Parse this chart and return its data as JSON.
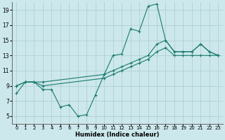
{
  "xlabel": "Humidex (Indice chaleur)",
  "bg_color": "#cce8ec",
  "grid_color": "#aacccc",
  "line_color": "#1a7a6e",
  "xlim": [
    -0.5,
    23.5
  ],
  "ylim": [
    4.0,
    20.0
  ],
  "xticks": [
    0,
    1,
    2,
    3,
    4,
    5,
    6,
    7,
    8,
    9,
    10,
    11,
    12,
    13,
    14,
    15,
    16,
    17,
    18,
    19,
    20,
    21,
    22,
    23
  ],
  "yticks": [
    5,
    7,
    9,
    11,
    13,
    15,
    17,
    19
  ],
  "series": {
    "jagged": {
      "x": [
        0,
        1,
        2,
        3,
        4,
        5,
        6,
        7,
        8,
        9,
        10,
        11,
        12,
        13,
        14,
        15,
        16,
        17,
        18,
        19,
        20,
        21,
        22,
        23
      ],
      "y": [
        8,
        9.5,
        9.5,
        8.5,
        8.5,
        6.2,
        6.5,
        5.0,
        5.2,
        7.8,
        10.5,
        13.0,
        13.2,
        16.5,
        16.2,
        19.5,
        19.8,
        15.0,
        13.5,
        13.5,
        13.5,
        14.5,
        13.5,
        13.0
      ]
    },
    "upper_straight": {
      "x": [
        0,
        1,
        2,
        3,
        10,
        11,
        12,
        13,
        14,
        15,
        16,
        17,
        18,
        19,
        20,
        21,
        22,
        23
      ],
      "y": [
        9,
        9.5,
        9.5,
        9.5,
        10.5,
        11.0,
        11.5,
        12.0,
        12.5,
        13.0,
        14.5,
        15.0,
        13.5,
        13.5,
        13.5,
        14.5,
        13.5,
        13.0
      ]
    },
    "lower_straight": {
      "x": [
        0,
        1,
        2,
        3,
        10,
        11,
        12,
        13,
        14,
        15,
        16,
        17,
        18,
        19,
        20,
        21,
        22,
        23
      ],
      "y": [
        9,
        9.5,
        9.5,
        9.0,
        10.0,
        10.5,
        11.0,
        11.5,
        12.0,
        12.5,
        13.5,
        14.0,
        13.0,
        13.0,
        13.0,
        13.0,
        13.0,
        13.0
      ]
    }
  }
}
